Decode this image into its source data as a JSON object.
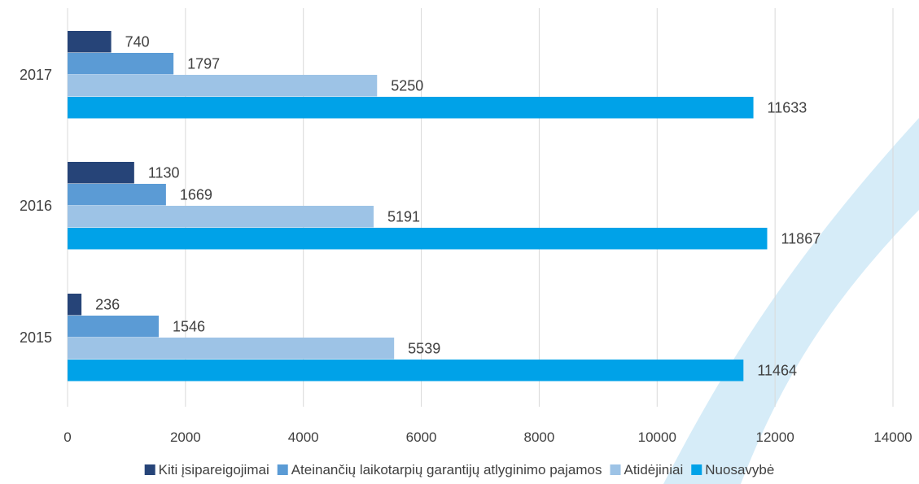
{
  "chart_data": {
    "type": "bar",
    "orientation": "horizontal",
    "categories": [
      "2015",
      "2016",
      "2017"
    ],
    "series": [
      {
        "name": "Kiti įsipareigojimai",
        "values": [
          236,
          1130,
          740
        ],
        "color": "#264478"
      },
      {
        "name": "Ateinančių laikotarpių garantijų atlyginimo pajamos",
        "values": [
          1546,
          1669,
          1797
        ],
        "color": "#5b9bd5"
      },
      {
        "name": "Atidėjiniai",
        "values": [
          5539,
          5191,
          5250
        ],
        "color": "#9dc3e6"
      },
      {
        "name": "Nuosavybė",
        "values": [
          11464,
          11867,
          11633
        ],
        "color": "#00a2e8"
      }
    ],
    "xlim": [
      0,
      14000
    ],
    "xticks": [
      0,
      2000,
      4000,
      6000,
      8000,
      10000,
      12000,
      14000
    ],
    "grid": "vertical",
    "legend_position": "bottom",
    "data_labels": true,
    "background_decoration_color": "#d6ecf8"
  }
}
